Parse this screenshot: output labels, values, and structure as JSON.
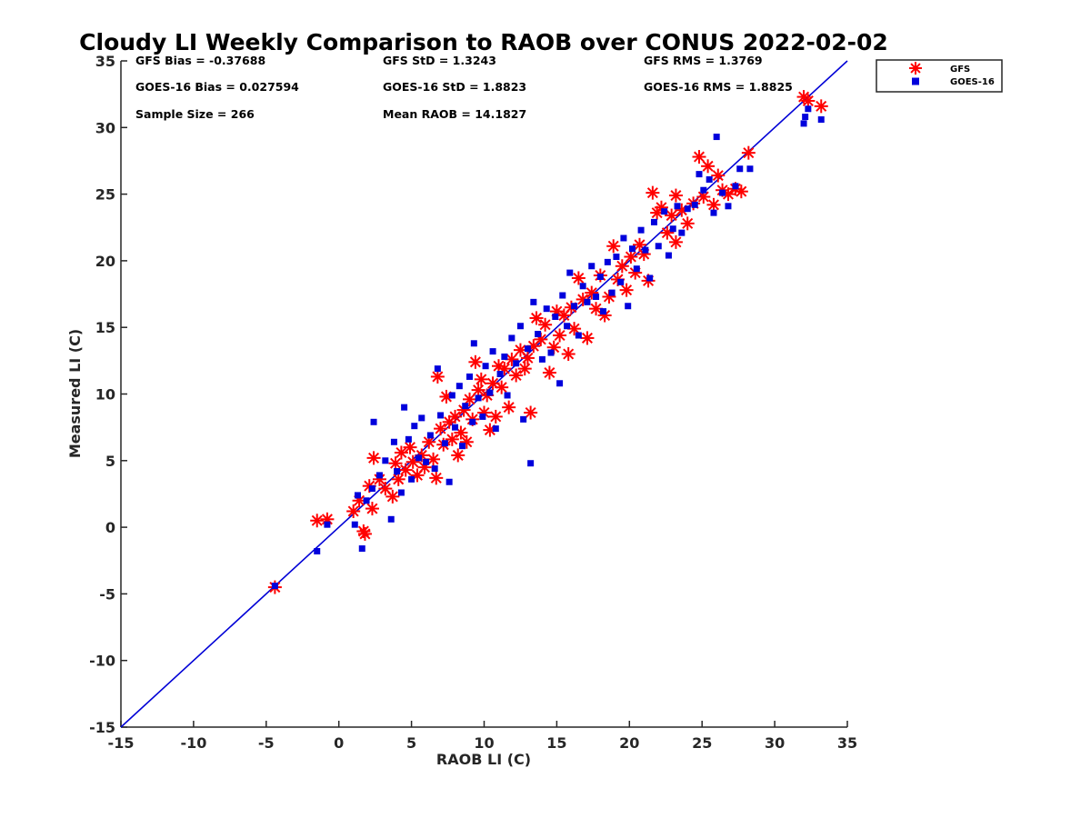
{
  "chart_data": {
    "type": "scatter",
    "title": "Cloudy LI Weekly Comparison to RAOB over CONUS 2022-02-02",
    "xlabel": "RAOB LI (C)",
    "ylabel": "Measured LI (C)",
    "xlim": [
      -15,
      35
    ],
    "ylim": [
      -15,
      35
    ],
    "xticks": [
      -15,
      -10,
      -5,
      0,
      5,
      10,
      15,
      20,
      25,
      30,
      35
    ],
    "yticks": [
      -15,
      -10,
      -5,
      0,
      5,
      10,
      15,
      20,
      25,
      30,
      35
    ],
    "grid": false,
    "legend_position": "outside-top-right",
    "reference_line": {
      "x": [
        -15,
        35
      ],
      "y": [
        -15,
        35
      ],
      "color": "#0000d6"
    },
    "stats": [
      [
        "GFS Bias = -0.37688",
        "GFS StD = 1.3243",
        "GFS RMS = 1.3769"
      ],
      [
        "GOES-16 Bias = 0.027594",
        "GOES-16 StD = 1.8823",
        "GOES-16 RMS = 1.8825"
      ],
      [
        "Sample Size = 266",
        "Mean RAOB = 14.1827",
        ""
      ]
    ],
    "series": [
      {
        "name": "GFS",
        "marker": "asterisk",
        "color": "#ff0000",
        "points": [
          [
            -4.4,
            -4.5
          ],
          [
            -1.5,
            0.5
          ],
          [
            -0.8,
            0.6
          ],
          [
            1.0,
            1.2
          ],
          [
            1.4,
            2.0
          ],
          [
            1.7,
            -0.3
          ],
          [
            1.8,
            -0.5
          ],
          [
            2.1,
            3.1
          ],
          [
            2.3,
            1.4
          ],
          [
            2.4,
            5.2
          ],
          [
            2.8,
            3.6
          ],
          [
            3.2,
            2.9
          ],
          [
            3.7,
            2.3
          ],
          [
            3.9,
            4.8
          ],
          [
            4.1,
            3.6
          ],
          [
            4.3,
            5.6
          ],
          [
            4.6,
            4.3
          ],
          [
            4.9,
            6.0
          ],
          [
            5.1,
            4.9
          ],
          [
            5.4,
            3.9
          ],
          [
            5.7,
            5.4
          ],
          [
            5.9,
            4.5
          ],
          [
            6.2,
            6.4
          ],
          [
            6.5,
            5.1
          ],
          [
            6.7,
            3.7
          ],
          [
            6.8,
            11.3
          ],
          [
            7.0,
            7.4
          ],
          [
            7.2,
            6.2
          ],
          [
            7.4,
            9.8
          ],
          [
            7.6,
            7.9
          ],
          [
            7.8,
            6.6
          ],
          [
            8.0,
            8.3
          ],
          [
            8.2,
            5.4
          ],
          [
            8.4,
            7.1
          ],
          [
            8.6,
            8.8
          ],
          [
            8.8,
            6.4
          ],
          [
            9.0,
            9.6
          ],
          [
            9.2,
            8.1
          ],
          [
            9.4,
            12.4
          ],
          [
            9.6,
            10.3
          ],
          [
            9.8,
            11.1
          ],
          [
            10.0,
            8.6
          ],
          [
            10.2,
            9.9
          ],
          [
            10.4,
            7.3
          ],
          [
            10.6,
            10.8
          ],
          [
            10.8,
            8.3
          ],
          [
            11.0,
            12.1
          ],
          [
            11.2,
            10.5
          ],
          [
            11.4,
            11.9
          ],
          [
            11.7,
            9.0
          ],
          [
            11.9,
            12.6
          ],
          [
            12.2,
            11.4
          ],
          [
            12.5,
            13.3
          ],
          [
            12.8,
            11.9
          ],
          [
            13.0,
            12.7
          ],
          [
            13.2,
            8.6
          ],
          [
            13.4,
            13.6
          ],
          [
            13.6,
            15.7
          ],
          [
            13.9,
            14.1
          ],
          [
            14.2,
            15.2
          ],
          [
            14.5,
            11.6
          ],
          [
            14.8,
            13.5
          ],
          [
            15.0,
            16.2
          ],
          [
            15.2,
            14.4
          ],
          [
            15.5,
            15.9
          ],
          [
            15.8,
            13.0
          ],
          [
            16.0,
            16.5
          ],
          [
            16.2,
            14.9
          ],
          [
            16.5,
            18.7
          ],
          [
            16.8,
            17.1
          ],
          [
            17.1,
            14.2
          ],
          [
            17.4,
            17.6
          ],
          [
            17.7,
            16.4
          ],
          [
            18.0,
            18.9
          ],
          [
            18.3,
            15.9
          ],
          [
            18.6,
            17.3
          ],
          [
            18.9,
            21.1
          ],
          [
            19.2,
            18.6
          ],
          [
            19.5,
            19.6
          ],
          [
            19.8,
            17.8
          ],
          [
            20.1,
            20.3
          ],
          [
            20.4,
            19.1
          ],
          [
            20.7,
            21.2
          ],
          [
            21.0,
            20.5
          ],
          [
            21.3,
            18.5
          ],
          [
            21.6,
            25.1
          ],
          [
            21.9,
            23.6
          ],
          [
            22.2,
            24.0
          ],
          [
            22.6,
            22.1
          ],
          [
            22.9,
            23.4
          ],
          [
            23.2,
            21.4
          ],
          [
            23.2,
            24.9
          ],
          [
            23.6,
            23.8
          ],
          [
            24.0,
            22.8
          ],
          [
            24.4,
            24.3
          ],
          [
            24.8,
            27.8
          ],
          [
            25.1,
            24.8
          ],
          [
            25.4,
            27.1
          ],
          [
            25.8,
            24.2
          ],
          [
            26.1,
            26.4
          ],
          [
            26.4,
            25.3
          ],
          [
            26.8,
            25.0
          ],
          [
            27.3,
            25.4
          ],
          [
            27.7,
            25.2
          ],
          [
            28.2,
            28.1
          ],
          [
            32.0,
            32.3
          ],
          [
            32.3,
            32.0
          ],
          [
            33.2,
            31.6
          ]
        ]
      },
      {
        "name": "GOES-16",
        "marker": "square",
        "color": "#0000dc",
        "points": [
          [
            -4.4,
            -4.4
          ],
          [
            -1.5,
            -1.8
          ],
          [
            -0.8,
            0.2
          ],
          [
            1.1,
            0.2
          ],
          [
            1.3,
            2.4
          ],
          [
            1.6,
            -1.6
          ],
          [
            1.9,
            2.0
          ],
          [
            2.3,
            2.9
          ],
          [
            2.4,
            7.9
          ],
          [
            2.8,
            3.9
          ],
          [
            3.2,
            5.0
          ],
          [
            3.6,
            0.6
          ],
          [
            3.8,
            6.4
          ],
          [
            4.0,
            4.2
          ],
          [
            4.3,
            2.6
          ],
          [
            4.5,
            9.0
          ],
          [
            4.8,
            6.6
          ],
          [
            5.0,
            3.6
          ],
          [
            5.2,
            7.6
          ],
          [
            5.5,
            5.2
          ],
          [
            5.7,
            8.2
          ],
          [
            6.0,
            4.9
          ],
          [
            6.3,
            6.9
          ],
          [
            6.6,
            4.4
          ],
          [
            6.8,
            11.9
          ],
          [
            7.0,
            8.4
          ],
          [
            7.3,
            6.3
          ],
          [
            7.6,
            3.4
          ],
          [
            7.8,
            9.9
          ],
          [
            8.0,
            7.5
          ],
          [
            8.3,
            10.6
          ],
          [
            8.5,
            6.1
          ],
          [
            8.7,
            9.1
          ],
          [
            9.0,
            11.3
          ],
          [
            9.2,
            7.9
          ],
          [
            9.3,
            13.8
          ],
          [
            9.6,
            9.7
          ],
          [
            9.9,
            8.3
          ],
          [
            10.1,
            12.1
          ],
          [
            10.4,
            10.1
          ],
          [
            10.6,
            13.2
          ],
          [
            10.8,
            7.4
          ],
          [
            11.1,
            11.5
          ],
          [
            11.4,
            12.8
          ],
          [
            11.6,
            9.9
          ],
          [
            11.9,
            14.2
          ],
          [
            12.2,
            12.3
          ],
          [
            12.5,
            15.1
          ],
          [
            12.7,
            8.1
          ],
          [
            13.0,
            13.4
          ],
          [
            13.2,
            4.8
          ],
          [
            13.4,
            16.9
          ],
          [
            13.7,
            14.5
          ],
          [
            14.0,
            12.6
          ],
          [
            14.3,
            16.4
          ],
          [
            14.6,
            13.1
          ],
          [
            14.9,
            15.8
          ],
          [
            15.2,
            10.8
          ],
          [
            15.4,
            17.4
          ],
          [
            15.7,
            15.1
          ],
          [
            15.9,
            19.1
          ],
          [
            16.2,
            16.6
          ],
          [
            16.5,
            14.4
          ],
          [
            16.8,
            18.1
          ],
          [
            17.1,
            16.9
          ],
          [
            17.4,
            19.6
          ],
          [
            17.7,
            17.3
          ],
          [
            18.0,
            18.8
          ],
          [
            18.2,
            16.2
          ],
          [
            18.5,
            19.9
          ],
          [
            18.8,
            17.6
          ],
          [
            19.1,
            20.3
          ],
          [
            19.4,
            18.4
          ],
          [
            19.6,
            21.7
          ],
          [
            19.9,
            16.6
          ],
          [
            20.2,
            20.9
          ],
          [
            20.5,
            19.4
          ],
          [
            20.8,
            22.3
          ],
          [
            21.1,
            20.8
          ],
          [
            21.4,
            18.7
          ],
          [
            21.7,
            22.9
          ],
          [
            22.0,
            21.1
          ],
          [
            22.4,
            23.7
          ],
          [
            22.7,
            20.4
          ],
          [
            23.0,
            22.4
          ],
          [
            23.3,
            24.1
          ],
          [
            23.6,
            22.1
          ],
          [
            24.0,
            23.9
          ],
          [
            24.5,
            24.2
          ],
          [
            24.8,
            26.5
          ],
          [
            25.1,
            25.3
          ],
          [
            25.5,
            26.1
          ],
          [
            25.8,
            23.6
          ],
          [
            26.0,
            29.3
          ],
          [
            26.4,
            25.1
          ],
          [
            26.8,
            24.1
          ],
          [
            27.3,
            25.6
          ],
          [
            27.6,
            26.9
          ],
          [
            28.3,
            26.9
          ],
          [
            32.0,
            30.3
          ],
          [
            32.1,
            30.8
          ],
          [
            32.3,
            31.4
          ],
          [
            33.2,
            30.6
          ]
        ]
      }
    ]
  }
}
